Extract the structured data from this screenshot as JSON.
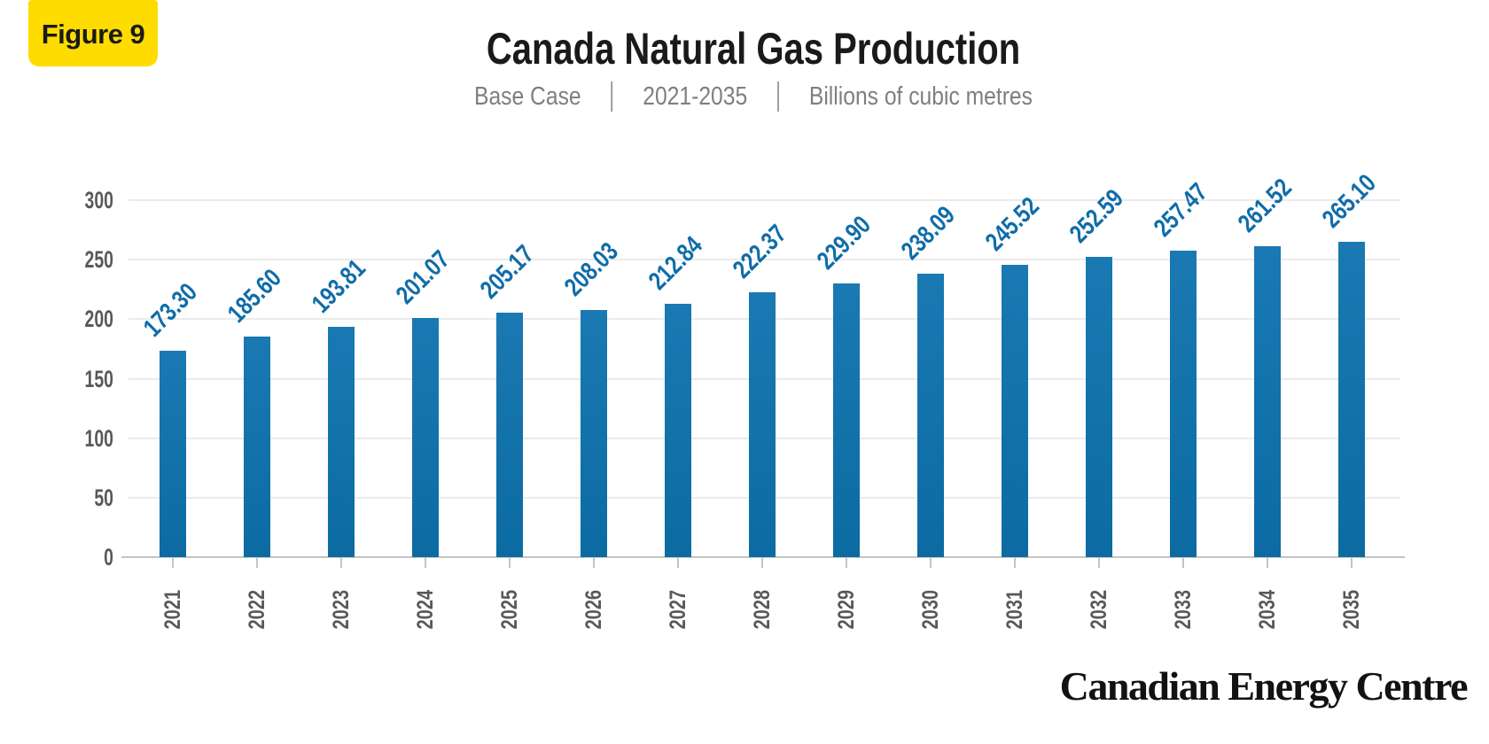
{
  "figure_label": "Figure 9",
  "header": {
    "title": "Canada Natural Gas Production",
    "subtitle_items": [
      "Base Case",
      "2021-2035",
      "Billions of cubic metres"
    ],
    "subtitle_separator": "|"
  },
  "footer_brand": "Canadian Energy Centre",
  "colors": {
    "badge_bg": "#FFDC00",
    "badge_text": "#1A1A1A",
    "title_text": "#1A1A1A",
    "subtitle_text": "#7F7F7F",
    "bar_top": "#1A79B2",
    "bar_bottom": "#0B6BA2",
    "value_label": "#0F6DA8",
    "axis_label": "#58595B",
    "gridline": "#EBEBEB",
    "axis_line": "#C4C4C4",
    "page_bg": "#FFFFFF"
  },
  "chart_data": {
    "type": "bar",
    "title": "Canada Natural Gas Production",
    "subtitle": "Base Case | 2021-2035 | Billions of cubic metres",
    "categories": [
      "2021",
      "2022",
      "2023",
      "2024",
      "2025",
      "2026",
      "2027",
      "2028",
      "2029",
      "2030",
      "2031",
      "2032",
      "2033",
      "2034",
      "2035"
    ],
    "values": [
      173.3,
      185.6,
      193.81,
      201.07,
      205.17,
      208.03,
      212.84,
      222.37,
      229.9,
      238.09,
      245.52,
      252.59,
      257.47,
      261.52,
      265.1
    ],
    "value_labels": [
      "173.30",
      "185.60",
      "193.81",
      "201.07",
      "205.17",
      "208.03",
      "212.84",
      "222.37",
      "229.90",
      "238.09",
      "245.52",
      "252.59",
      "257.47",
      "261.52",
      "265.10"
    ],
    "xlabel": "",
    "ylabel": "",
    "ylim": [
      0,
      300
    ],
    "y_ticks": [
      0,
      50,
      100,
      150,
      200,
      250,
      300
    ],
    "grid": "horizontal",
    "legend": "none",
    "data_label_rotation": -45,
    "x_tick_rotation": -90
  }
}
